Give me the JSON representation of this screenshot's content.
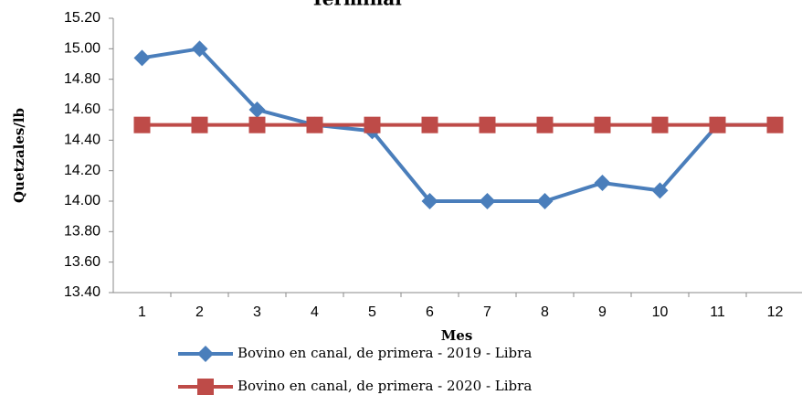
{
  "chart_data": {
    "type": "line",
    "title": "Terminal",
    "x_label": "Mes",
    "y_label": "Quetzales/lb",
    "categories": [
      "1",
      "2",
      "3",
      "4",
      "5",
      "6",
      "7",
      "8",
      "9",
      "10",
      "11",
      "12"
    ],
    "series": [
      {
        "name": "Bovino en canal, de primera - 2019 - Libra",
        "color": "#4a7ebb",
        "marker": "diamond",
        "values": [
          14.94,
          15.0,
          14.6,
          14.5,
          14.46,
          14.0,
          14.0,
          14.0,
          14.12,
          14.07,
          14.5,
          14.5
        ]
      },
      {
        "name": "Bovino en canal, de primera - 2020 - Libra",
        "color": "#be4b48",
        "marker": "square",
        "values": [
          14.5,
          14.5,
          14.5,
          14.5,
          14.5,
          14.5,
          14.5,
          14.5,
          14.5,
          14.5,
          14.5,
          14.5
        ]
      }
    ],
    "ylim": [
      13.4,
      15.2
    ],
    "yticks": [
      {
        "value": 13.4,
        "label": "13.40"
      },
      {
        "value": 13.6,
        "label": "13.60"
      },
      {
        "value": 13.8,
        "label": "13.80"
      },
      {
        "value": 14.0,
        "label": "14.00"
      },
      {
        "value": 14.2,
        "label": "14.20"
      },
      {
        "value": 14.4,
        "label": "14.40"
      },
      {
        "value": 14.6,
        "label": "14.60"
      },
      {
        "value": 14.8,
        "label": "14.80"
      },
      {
        "value": 15.0,
        "label": "15.00"
      },
      {
        "value": 15.2,
        "label": "15.20"
      }
    ],
    "grid": false
  }
}
